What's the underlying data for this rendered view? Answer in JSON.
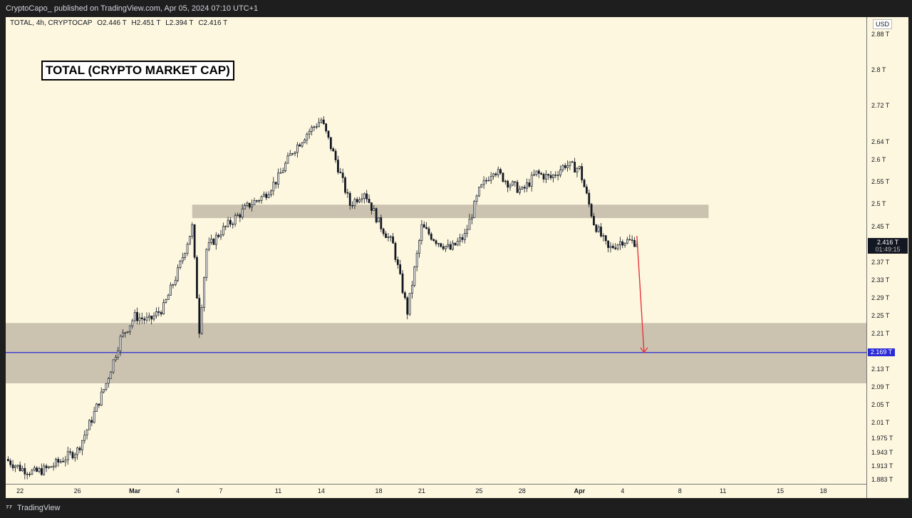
{
  "header": {
    "publish_line": "CryptoCapo_ published on TradingView.com, Apr 05, 2024 07:10 UTC+1"
  },
  "legend": {
    "symbol": "TOTAL, 4h, CRYPTOCAP",
    "open": "O2.446 T",
    "high": "H2.451 T",
    "low": "L2.394 T",
    "close": "C2.416 T"
  },
  "annotation": {
    "title": "TOTAL (CRYPTO MARKET CAP)"
  },
  "price_axis": {
    "currency": "USD",
    "ticks": [
      "2.88 T",
      "2.8 T",
      "2.72 T",
      "2.64 T",
      "2.6 T",
      "2.55 T",
      "2.5 T",
      "2.45 T",
      "2.37 T",
      "2.33 T",
      "2.29 T",
      "2.25 T",
      "2.21 T",
      "2.13 T",
      "2.09 T",
      "2.05 T",
      "2.01 T",
      "1.975 T",
      "1.943 T",
      "1.913 T",
      "1.883 T"
    ],
    "last_price": "2.416 T",
    "countdown": "01:49:15",
    "level_price": "2.169 T"
  },
  "time_axis": {
    "ticks": [
      {
        "label": "22",
        "bold": false
      },
      {
        "label": "26",
        "bold": false
      },
      {
        "label": "Mar",
        "bold": true
      },
      {
        "label": "4",
        "bold": false
      },
      {
        "label": "7",
        "bold": false
      },
      {
        "label": "11",
        "bold": false
      },
      {
        "label": "14",
        "bold": false
      },
      {
        "label": "18",
        "bold": false
      },
      {
        "label": "21",
        "bold": false
      },
      {
        "label": "25",
        "bold": false
      },
      {
        "label": "28",
        "bold": false
      },
      {
        "label": "Apr",
        "bold": true
      },
      {
        "label": "4",
        "bold": false
      },
      {
        "label": "8",
        "bold": false
      },
      {
        "label": "11",
        "bold": false
      },
      {
        "label": "15",
        "bold": false
      },
      {
        "label": "18",
        "bold": false
      }
    ]
  },
  "footer": {
    "brand": "TradingView"
  },
  "colors": {
    "background": "#fdf7df",
    "zone_fill": "#cbc3b0",
    "support_line": "#2a2ad6",
    "arrow": "#e8333b",
    "candle": "#131722"
  },
  "chart_data": {
    "type": "candlestick",
    "symbol": "TOTAL",
    "interval": "4h",
    "x_range": [
      "2024-02-21",
      "2024-04-21"
    ],
    "y_range": [
      1.875,
      2.92
    ],
    "close_path": [
      [
        "2024-02-21",
        1.93
      ],
      [
        "2024-02-22",
        1.91
      ],
      [
        "2024-02-23",
        1.9
      ],
      [
        "2024-02-24",
        1.91
      ],
      [
        "2024-02-25",
        1.93
      ],
      [
        "2024-02-26",
        1.95
      ],
      [
        "2024-02-27",
        2.02
      ],
      [
        "2024-02-28",
        2.1
      ],
      [
        "2024-02-29",
        2.2
      ],
      [
        "2024-03-01",
        2.25
      ],
      [
        "2024-03-02",
        2.24
      ],
      [
        "2024-03-03",
        2.27
      ],
      [
        "2024-03-04",
        2.35
      ],
      [
        "2024-03-05",
        2.45
      ],
      [
        "2024-03-05T12",
        2.22
      ],
      [
        "2024-03-06",
        2.4
      ],
      [
        "2024-03-07",
        2.44
      ],
      [
        "2024-03-08",
        2.47
      ],
      [
        "2024-03-09",
        2.5
      ],
      [
        "2024-03-10",
        2.52
      ],
      [
        "2024-03-11",
        2.56
      ],
      [
        "2024-03-12",
        2.62
      ],
      [
        "2024-03-13",
        2.66
      ],
      [
        "2024-03-14",
        2.69
      ],
      [
        "2024-03-15",
        2.6
      ],
      [
        "2024-03-16",
        2.5
      ],
      [
        "2024-03-17",
        2.53
      ],
      [
        "2024-03-18",
        2.46
      ],
      [
        "2024-03-19",
        2.41
      ],
      [
        "2024-03-20",
        2.26
      ],
      [
        "2024-03-21",
        2.45
      ],
      [
        "2024-03-22",
        2.42
      ],
      [
        "2024-03-23",
        2.4
      ],
      [
        "2024-03-24",
        2.43
      ],
      [
        "2024-03-25",
        2.53
      ],
      [
        "2024-03-26",
        2.58
      ],
      [
        "2024-03-27",
        2.55
      ],
      [
        "2024-03-28",
        2.53
      ],
      [
        "2024-03-29",
        2.57
      ],
      [
        "2024-03-30",
        2.56
      ],
      [
        "2024-03-31",
        2.59
      ],
      [
        "2024-04-01",
        2.58
      ],
      [
        "2024-04-02",
        2.46
      ],
      [
        "2024-04-03",
        2.4
      ],
      [
        "2024-04-04",
        2.42
      ],
      [
        "2024-04-05",
        2.416
      ]
    ],
    "resistance_zone": {
      "from": "2024-03-05",
      "to": "2024-04-10",
      "low": 2.47,
      "high": 2.5
    },
    "support_zone": {
      "from": "2024-02-19",
      "to": "2024-04-21",
      "low": 2.1,
      "high": 2.235
    },
    "support_level": 2.169,
    "projection_arrow": {
      "from": [
        "2024-04-05",
        2.43
      ],
      "to": [
        "2024-04-05T12",
        2.169
      ]
    }
  }
}
